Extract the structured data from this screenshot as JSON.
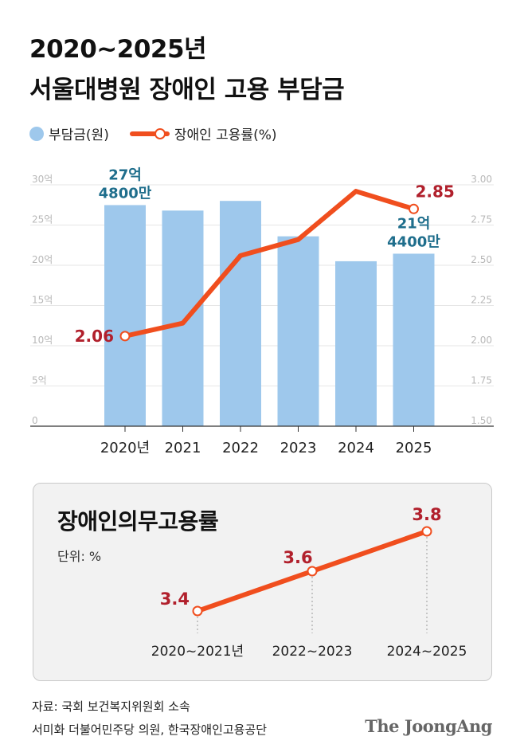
{
  "title": {
    "line1": "2020~2025년",
    "line2": "서울대병원 장애인 고용 부담금"
  },
  "legend": {
    "bar_label": "부담금(원)",
    "line_label": "장애인 고용률(%)"
  },
  "colors": {
    "bar": "#9ec8ec",
    "line": "#f04e1e",
    "value_red": "#b1202c",
    "value_blue": "#1f6e8c"
  },
  "chart_data": [
    {
      "type": "bar",
      "categories": [
        "2020년",
        "2021",
        "2022",
        "2023",
        "2024",
        "2025"
      ],
      "series": [
        {
          "name": "부담금(원)",
          "values": [
            27.48,
            26.8,
            28.0,
            23.6,
            20.5,
            21.44
          ]
        },
        {
          "name": "장애인 고용률(%)",
          "values": [
            2.06,
            2.14,
            2.56,
            2.66,
            2.96,
            2.85
          ]
        }
      ],
      "y_left": {
        "ticks": [
          "0",
          "5억",
          "10억",
          "15억",
          "20억",
          "25억",
          "30억"
        ],
        "ylim": [
          0,
          30
        ]
      },
      "y_right": {
        "ticks": [
          "1.50",
          "1.75",
          "2.00",
          "2.25",
          "2.50",
          "2.75",
          "3.00"
        ],
        "ylim": [
          1.5,
          3.0
        ]
      },
      "annotations": {
        "first_bar": [
          "27억",
          "4800만"
        ],
        "last_bar": [
          "21억",
          "4400만"
        ],
        "first_rate": "2.06",
        "last_rate": "2.85"
      },
      "grid": true
    },
    {
      "type": "line",
      "title": "장애인의무고용률",
      "unit": "단위: %",
      "categories": [
        "2020~2021년",
        "2022~2023",
        "2024~2025"
      ],
      "values": [
        3.4,
        3.6,
        3.8
      ],
      "labels": [
        "3.4",
        "3.6",
        "3.8"
      ]
    }
  ],
  "source": {
    "line1": "자료: 국회 보건복지위원회 소속",
    "line2": "서미화 더불어민주당 의원, 한국장애인고용공단"
  },
  "brand": "The JoongAng"
}
